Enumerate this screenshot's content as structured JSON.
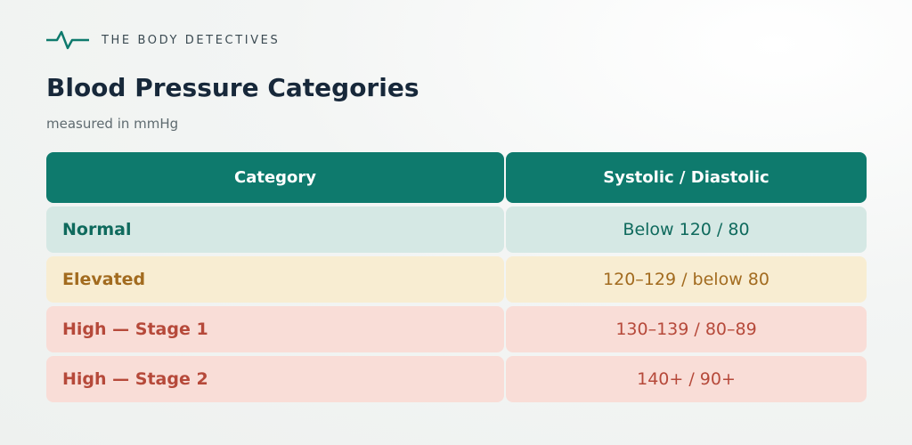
{
  "header": {
    "brand": "THE BODY DETECTIVES",
    "title": "Blood Pressure Categories",
    "subtitle": "measured in mmHg"
  },
  "table": {
    "columns": [
      "Category",
      "Systolic / Diastolic"
    ],
    "rows": [
      [
        "Normal",
        "Below 120 / 80"
      ],
      [
        "Elevated",
        "120–129 / below 80"
      ],
      [
        "High — Stage 1",
        "130–139 / 80–89"
      ],
      [
        "High — Stage 2",
        "140+ / 90+"
      ]
    ]
  }
}
